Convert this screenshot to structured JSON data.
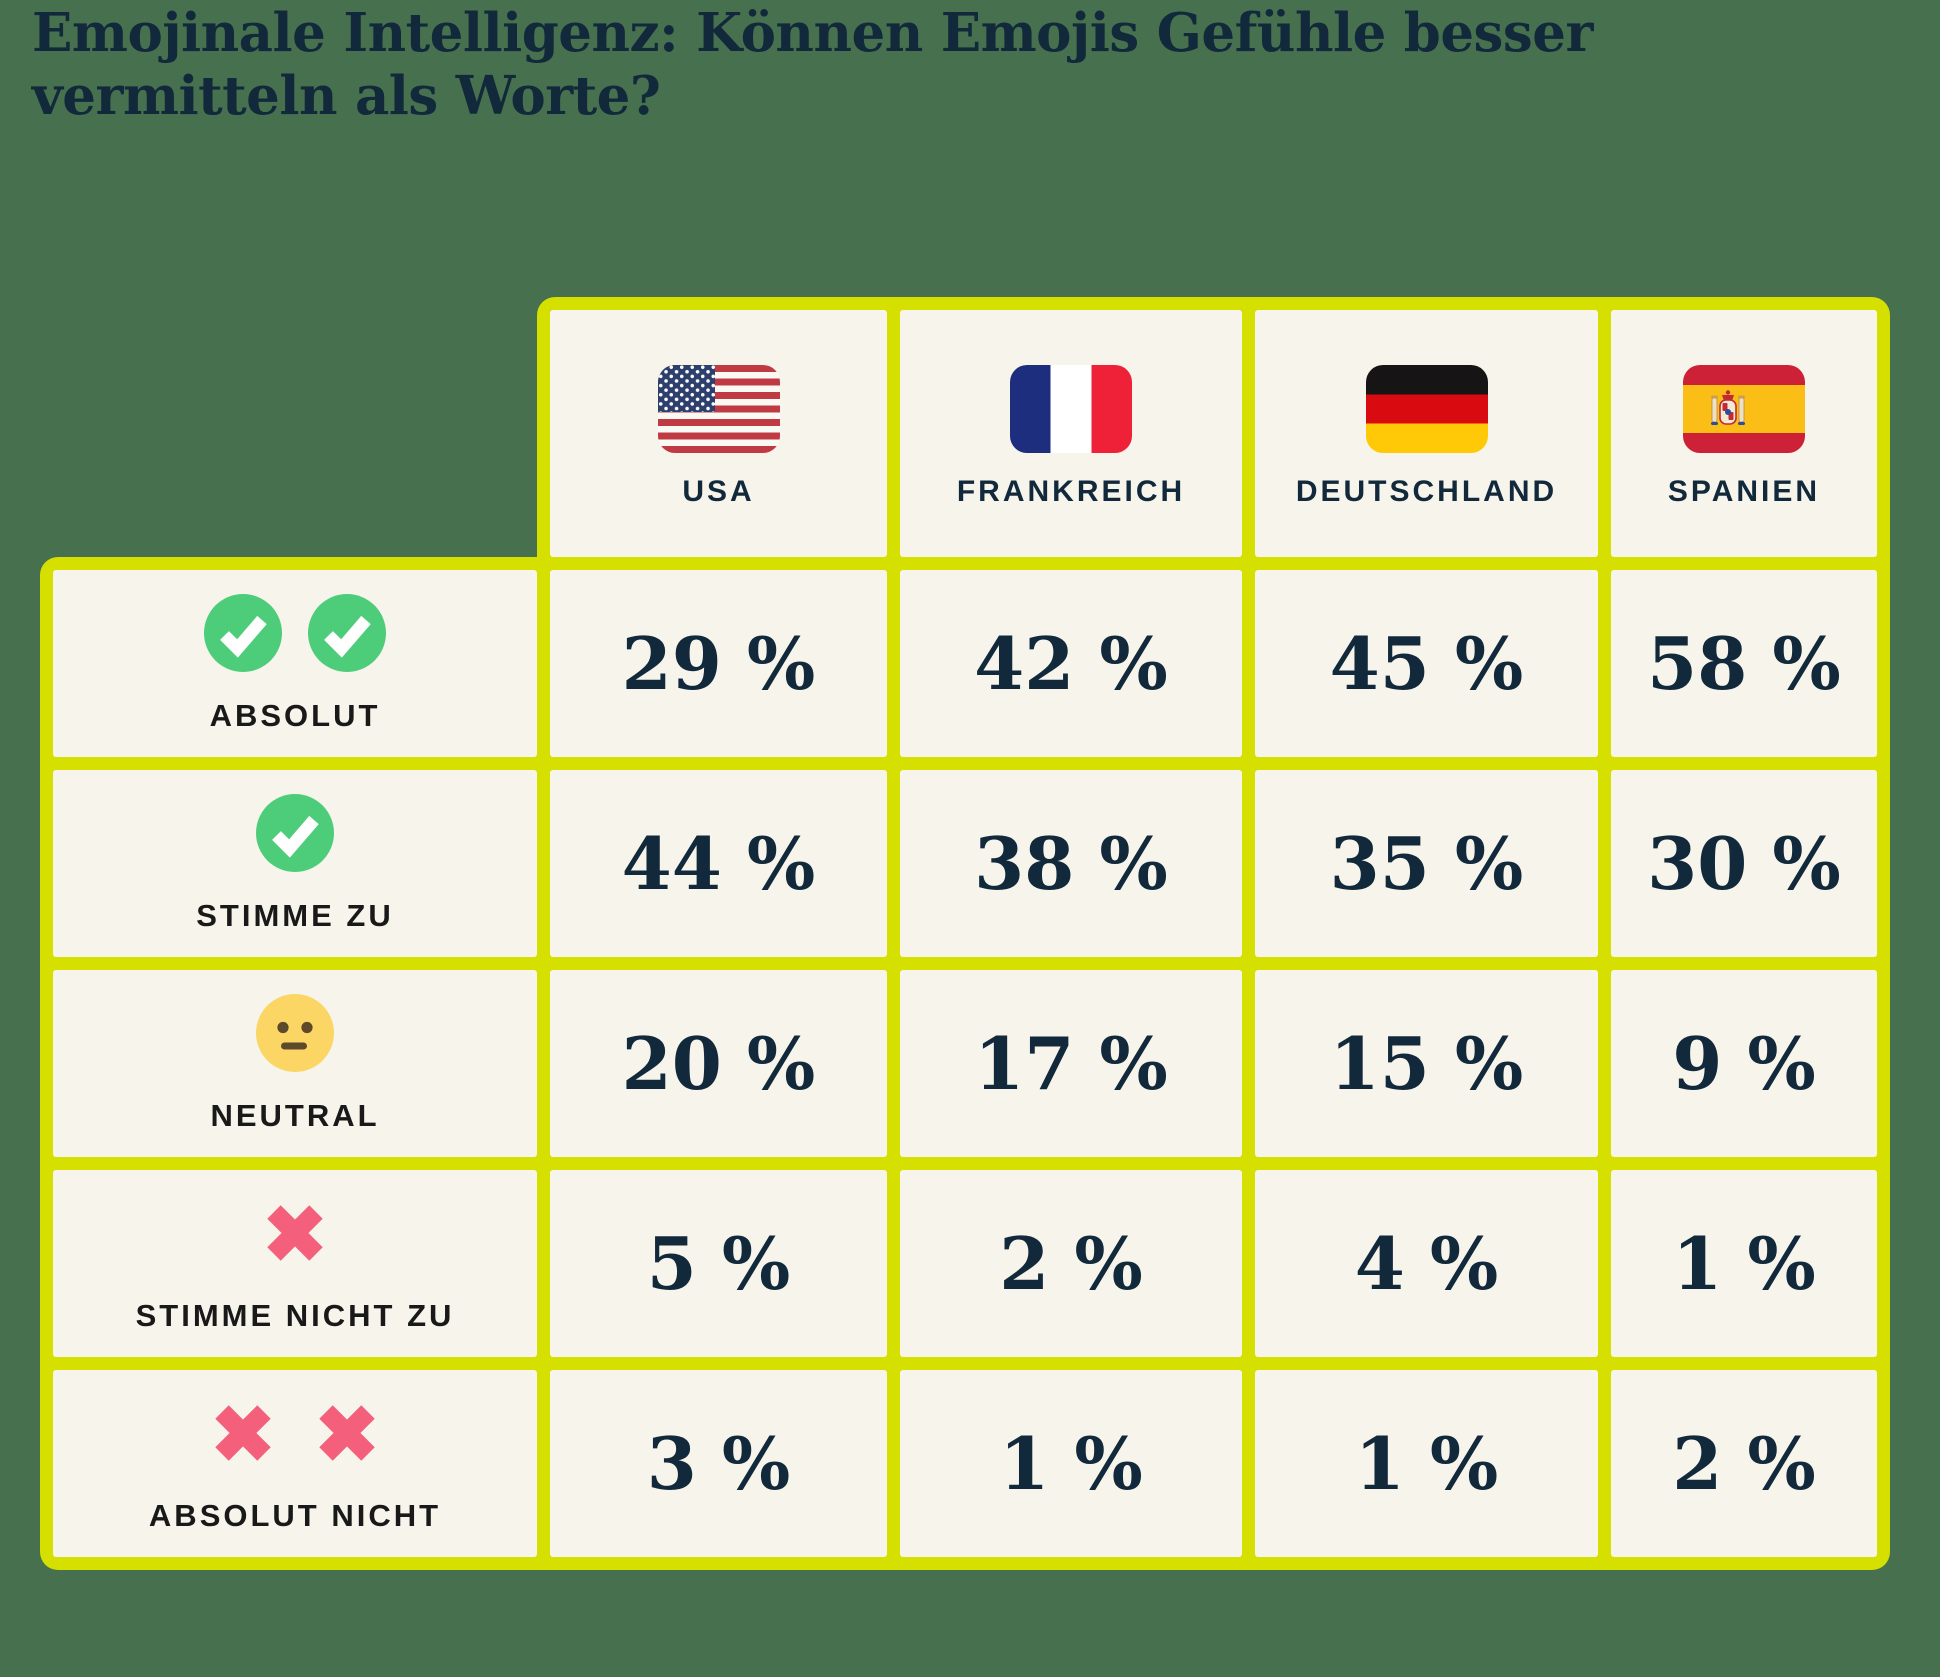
{
  "title": "Emojinale Intelligenz: Können Emojis Gefühle besser vermitteln als Worte?",
  "title_lines": [
    "Emojinale Intelligenz: Können Emojis Gefühle besser",
    "vermitteln als Worte?"
  ],
  "chart_data": {
    "type": "table",
    "title": "Emojinale Intelligenz: Können Emojis Gefühle besser vermitteln als Worte?",
    "value_suffix": " %",
    "columns": [
      {
        "id": "usa",
        "label": "USA",
        "flag": "usa-flag"
      },
      {
        "id": "france",
        "label": "FRANKREICH",
        "flag": "france-flag"
      },
      {
        "id": "germany",
        "label": "DEUTSCHLAND",
        "flag": "germany-flag"
      },
      {
        "id": "spain",
        "label": "SPANIEN",
        "flag": "spain-flag"
      }
    ],
    "rows": [
      {
        "label": "ABSOLUT",
        "icon": "check-circle",
        "icon_count": 2,
        "values": [
          29,
          42,
          45,
          58
        ],
        "display": [
          "29 %",
          "42 %",
          "45 %",
          "58 %"
        ]
      },
      {
        "label": "STIMME ZU",
        "icon": "check-circle",
        "icon_count": 1,
        "values": [
          44,
          38,
          35,
          30
        ],
        "display": [
          "44 %",
          "38 %",
          "35 %",
          "30 %"
        ]
      },
      {
        "label": "NEUTRAL",
        "icon": "neutral-face",
        "icon_count": 1,
        "values": [
          20,
          17,
          15,
          9
        ],
        "display": [
          "20 %",
          "17 %",
          "15 %",
          "9 %"
        ]
      },
      {
        "label": "STIMME NICHT ZU",
        "icon": "cross-mark",
        "icon_count": 1,
        "values": [
          5,
          2,
          4,
          1
        ],
        "display": [
          "5 %",
          "2 %",
          "4 %",
          "1 %"
        ]
      },
      {
        "label": "ABSOLUT NICHT",
        "icon": "cross-mark",
        "icon_count": 2,
        "values": [
          3,
          1,
          1,
          2
        ],
        "display": [
          "3 %",
          "1 %",
          "1 %",
          "2 %"
        ]
      }
    ]
  },
  "colors": {
    "background": "#47704E",
    "border": "#D5E000",
    "cell": "#F7F4EB",
    "navy": "#11293B",
    "label_black": "#191919",
    "check_green": "#4DCD7A",
    "cross_pink": "#F4607C",
    "neutral_yellow": "#FBD665",
    "neutral_features": "#5D4A2B"
  }
}
